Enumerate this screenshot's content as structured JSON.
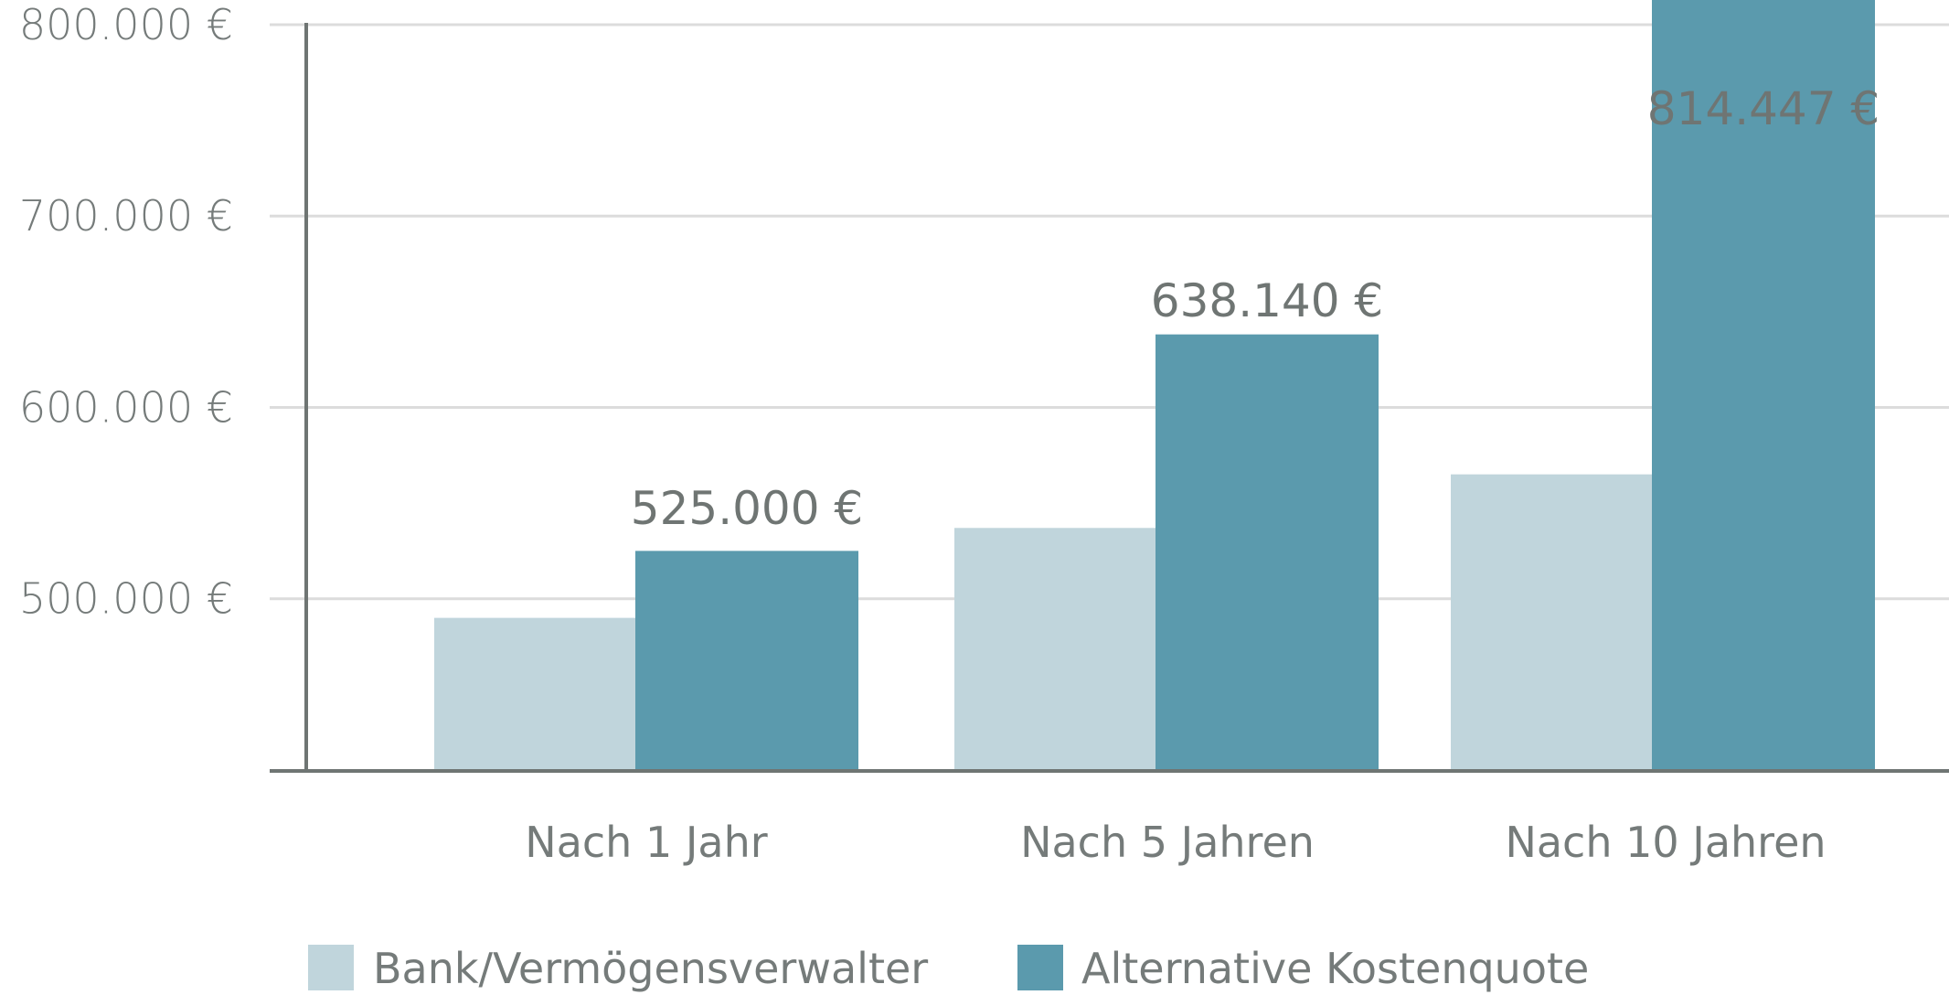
{
  "chart_data": {
    "type": "bar",
    "categories": [
      "Nach 1 Jahr",
      "Nach 5 Jahren",
      "Nach 10 Jahren"
    ],
    "series": [
      {
        "name": "Bank/Vermögensverwalter",
        "values": [
          490000,
          537000,
          565000
        ],
        "color": "#c0d5dc"
      },
      {
        "name": "Alternative Kostenquote",
        "values": [
          525000,
          638140,
          814447
        ],
        "color": "#5b9aad"
      }
    ],
    "data_labels": [
      "525.000 €",
      "638.140 €",
      "814.447 €"
    ],
    "yticks": [
      {
        "value": 500000,
        "label": "500.000 €"
      },
      {
        "value": 600000,
        "label": "600.000 €"
      },
      {
        "value": 700000,
        "label": "700.000 €"
      },
      {
        "value": 800000,
        "label": "800.000 €"
      }
    ],
    "ylim": [
      410000,
      800000
    ],
    "grid": true,
    "legend_position": "bottom-left",
    "axis_color": "#6f7573",
    "grid_color": "#dcdcdc"
  }
}
